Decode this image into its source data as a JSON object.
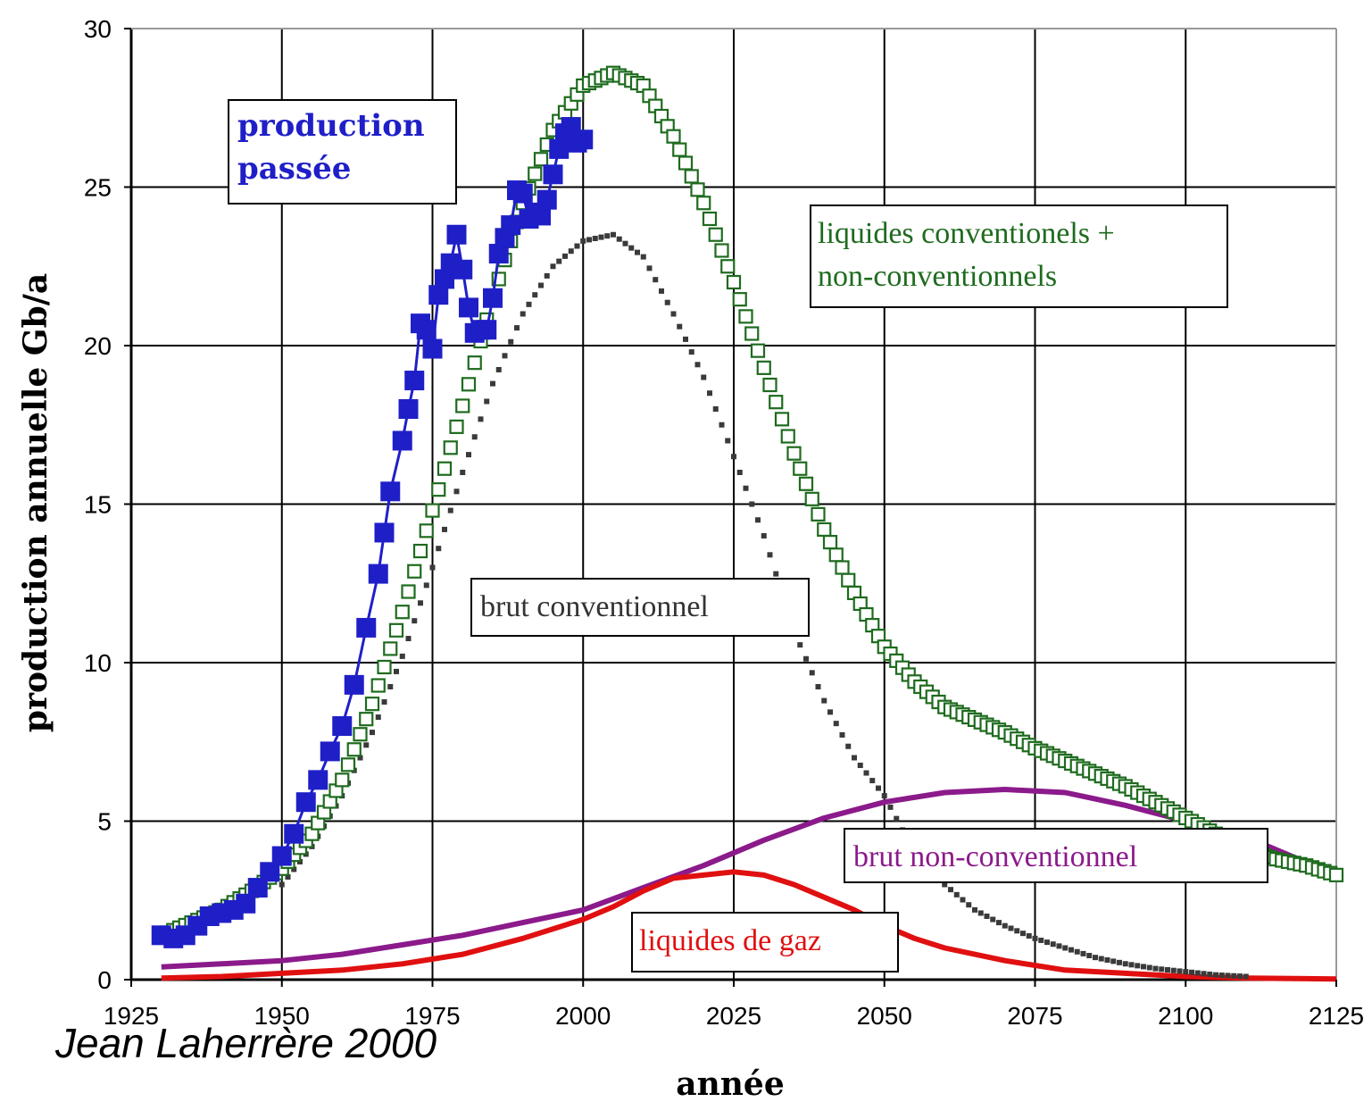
{
  "chart_data": {
    "type": "line",
    "title": "",
    "xlabel": "année",
    "ylabel": "production annuelle Gb/a",
    "xlim": [
      1925,
      2125
    ],
    "ylim": [
      0,
      30
    ],
    "xticks": [
      "1925",
      "1950",
      "1975",
      "2000",
      "2025",
      "2050",
      "2075",
      "2100",
      "2125"
    ],
    "yticks": [
      "0",
      "5",
      "10",
      "15",
      "20",
      "25",
      "30"
    ],
    "grid": true,
    "credit": "Jean Laherrère 2000",
    "colors": {
      "production": "#1f1fc8",
      "total": "#1e6b1e",
      "brut": "#3a3a3a",
      "nonconv": "#8b1a8b",
      "gaz": "#e01010"
    },
    "labels": {
      "production_line1": "production",
      "production_line2": "passée",
      "total_line1": "liquides conventionels +",
      "total_line2": "non-conventionnels",
      "brut": "brut conventionnel",
      "nonconv": "brut non-conventionnel",
      "gaz": "liquides de gaz"
    },
    "series": [
      {
        "key": "production",
        "name": "production passée",
        "marker": "filled-square",
        "x": [
          1930,
          1932,
          1934,
          1936,
          1938,
          1940,
          1942,
          1944,
          1946,
          1948,
          1950,
          1952,
          1954,
          1956,
          1958,
          1960,
          1962,
          1964,
          1966,
          1967,
          1968,
          1970,
          1971,
          1972,
          1973,
          1974,
          1975,
          1976,
          1977,
          1978,
          1979,
          1980,
          1981,
          1982,
          1983,
          1984,
          1985,
          1986,
          1987,
          1988,
          1989,
          1990,
          1991,
          1992,
          1993,
          1994,
          1995,
          1996,
          1997,
          1998,
          1999,
          2000
        ],
        "y": [
          1.4,
          1.3,
          1.4,
          1.7,
          2.0,
          2.1,
          2.2,
          2.4,
          2.9,
          3.4,
          3.9,
          4.6,
          5.6,
          6.3,
          7.2,
          8.0,
          9.3,
          11.1,
          12.8,
          14.1,
          15.4,
          17.0,
          18.0,
          18.9,
          20.7,
          20.5,
          19.9,
          21.6,
          22.1,
          22.6,
          23.5,
          22.4,
          21.2,
          20.4,
          20.5,
          20.5,
          21.5,
          22.9,
          23.4,
          23.8,
          24.9,
          24.8,
          24.0,
          24.2,
          24.1,
          24.6,
          25.4,
          26.2,
          26.7,
          26.9,
          26.4,
          26.5
        ]
      },
      {
        "key": "total",
        "name": "liquides conventionels + non-conventionnels",
        "marker": "open-square",
        "x": [
          1930,
          1935,
          1940,
          1945,
          1950,
          1955,
          1960,
          1965,
          1970,
          1975,
          1980,
          1985,
          1990,
          1995,
          2000,
          2005,
          2010,
          2015,
          2020,
          2025,
          2030,
          2035,
          2040,
          2045,
          2050,
          2055,
          2060,
          2065,
          2070,
          2075,
          2080,
          2085,
          2090,
          2095,
          2100,
          2105,
          2110,
          2115,
          2120,
          2125
        ],
        "y": [
          1.4,
          1.8,
          2.2,
          2.8,
          3.5,
          4.6,
          6.3,
          8.7,
          11.6,
          14.8,
          18.1,
          21.5,
          24.5,
          26.8,
          28.2,
          28.6,
          28.2,
          26.6,
          24.5,
          22.0,
          19.3,
          16.6,
          14.2,
          12.2,
          10.5,
          9.4,
          8.6,
          8.2,
          7.8,
          7.3,
          6.9,
          6.5,
          6.1,
          5.6,
          5.1,
          4.6,
          4.1,
          3.8,
          3.6,
          3.3
        ]
      },
      {
        "key": "brut",
        "name": "brut conventionnel",
        "marker": "dash",
        "x": [
          1950,
          1955,
          1960,
          1965,
          1970,
          1975,
          1980,
          1985,
          1990,
          1995,
          2000,
          2005,
          2010,
          2015,
          2020,
          2025,
          2030,
          2035,
          2040,
          2045,
          2050,
          2055,
          2060,
          2065,
          2070,
          2075,
          2080,
          2085,
          2090,
          2095,
          2100,
          2105,
          2110
        ],
        "y": [
          3.0,
          4.2,
          5.8,
          7.8,
          10.2,
          13.0,
          16.0,
          18.8,
          21.0,
          22.5,
          23.3,
          23.5,
          22.8,
          21.0,
          19.0,
          16.5,
          14.0,
          11.0,
          8.8,
          7.0,
          5.8,
          4.0,
          3.0,
          2.2,
          1.7,
          1.3,
          1.0,
          0.7,
          0.5,
          0.35,
          0.25,
          0.15,
          0.1
        ]
      },
      {
        "key": "nonconv",
        "name": "brut non-conventionnel",
        "marker": "line",
        "x": [
          1930,
          1940,
          1950,
          1960,
          1970,
          1980,
          1990,
          2000,
          2010,
          2020,
          2030,
          2040,
          2050,
          2060,
          2070,
          2080,
          2090,
          2100,
          2110,
          2120,
          2125
        ],
        "y": [
          0.4,
          0.5,
          0.6,
          0.8,
          1.1,
          1.4,
          1.8,
          2.2,
          2.9,
          3.6,
          4.4,
          5.1,
          5.6,
          5.9,
          6.0,
          5.9,
          5.5,
          5.0,
          4.5,
          3.7,
          3.3
        ]
      },
      {
        "key": "gaz",
        "name": "liquides de gaz",
        "marker": "line",
        "x": [
          1930,
          1940,
          1950,
          1960,
          1970,
          1980,
          1990,
          2000,
          2005,
          2010,
          2015,
          2020,
          2025,
          2030,
          2035,
          2040,
          2045,
          2050,
          2055,
          2060,
          2070,
          2080,
          2090,
          2100,
          2110,
          2120,
          2125
        ],
        "y": [
          0.05,
          0.1,
          0.2,
          0.3,
          0.5,
          0.8,
          1.3,
          1.9,
          2.3,
          2.8,
          3.2,
          3.3,
          3.4,
          3.3,
          3.0,
          2.6,
          2.2,
          1.7,
          1.3,
          1.0,
          0.6,
          0.3,
          0.2,
          0.1,
          0.05,
          0.03,
          0.02
        ]
      }
    ]
  }
}
